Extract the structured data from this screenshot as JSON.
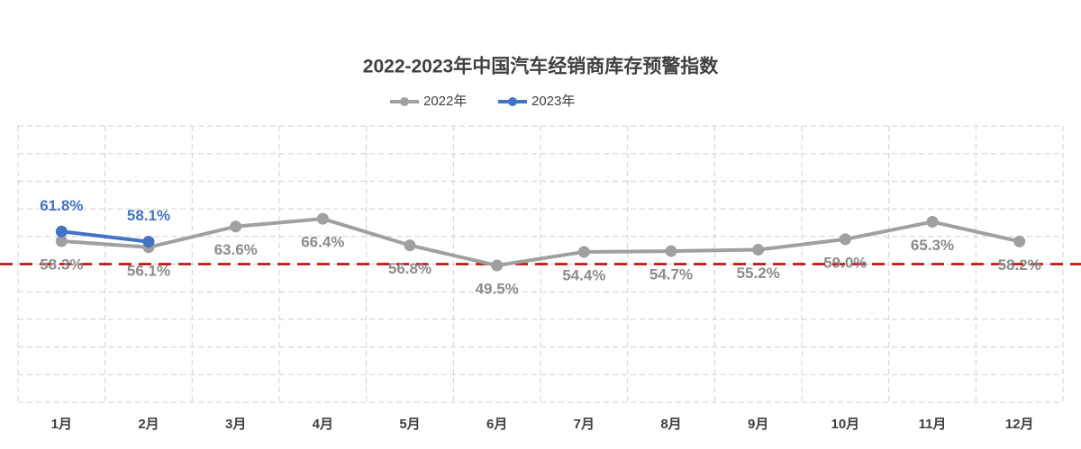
{
  "chart_data": {
    "type": "line",
    "title": "2022-2023年中国汽车经销商库存预警指数",
    "categories": [
      "1月",
      "2月",
      "3月",
      "4月",
      "5月",
      "6月",
      "7月",
      "8月",
      "9月",
      "10月",
      "11月",
      "12月"
    ],
    "series": [
      {
        "name": "2022年",
        "color": "#a0a0a0",
        "values": [
          58.3,
          56.1,
          63.6,
          66.4,
          56.8,
          49.5,
          54.4,
          54.7,
          55.2,
          59.0,
          65.3,
          58.2
        ],
        "value_labels": [
          "58.3%",
          "56.1%",
          "63.6%",
          "66.4%",
          "56.8%",
          "49.5%",
          "54.4%",
          "54.7%",
          "55.2%",
          "59.0%",
          "65.3%",
          "58.2%"
        ]
      },
      {
        "name": "2023年",
        "color": "#4472c4",
        "values": [
          61.8,
          58.1,
          null,
          null,
          null,
          null,
          null,
          null,
          null,
          null,
          null,
          null
        ],
        "value_labels": [
          "61.8%",
          "58.1%",
          null,
          null,
          null,
          null,
          null,
          null,
          null,
          null,
          null,
          null
        ]
      }
    ],
    "ylim": [
      0,
      100
    ],
    "yticks": [
      0,
      10,
      20,
      30,
      40,
      50,
      60,
      70,
      80,
      90,
      100
    ],
    "grid": true,
    "reference_line": {
      "value": 50,
      "color": "#c00000"
    },
    "legend": "top"
  }
}
